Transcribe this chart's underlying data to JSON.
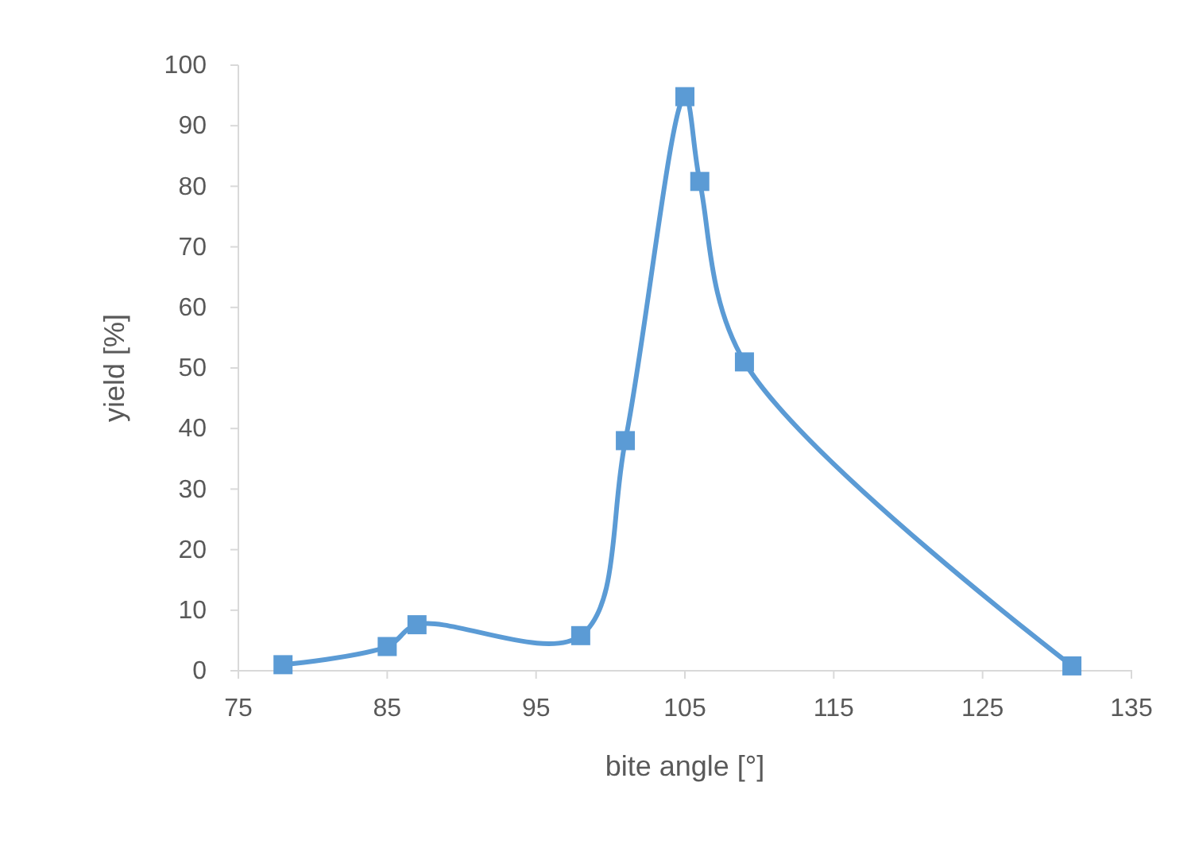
{
  "chart_data": {
    "type": "line",
    "xlabel": "bite angle [°]",
    "ylabel": "yield [%]",
    "x": [
      78,
      85,
      87,
      98,
      101,
      105,
      106,
      109,
      131
    ],
    "series": [
      {
        "color": "#5b9bd5",
        "values": [
          1,
          4,
          7.6,
          5.8,
          38,
          94.8,
          80.8,
          51,
          0.8
        ]
      }
    ],
    "xlim": [
      75,
      135
    ],
    "xticks": [
      75,
      85,
      95,
      105,
      115,
      125,
      135
    ],
    "ylim": [
      0,
      100
    ],
    "yticks": [
      0,
      10,
      20,
      30,
      40,
      50,
      60,
      70,
      80,
      90,
      100
    ],
    "marker": "square",
    "line_style": "solid",
    "grid": false
  }
}
